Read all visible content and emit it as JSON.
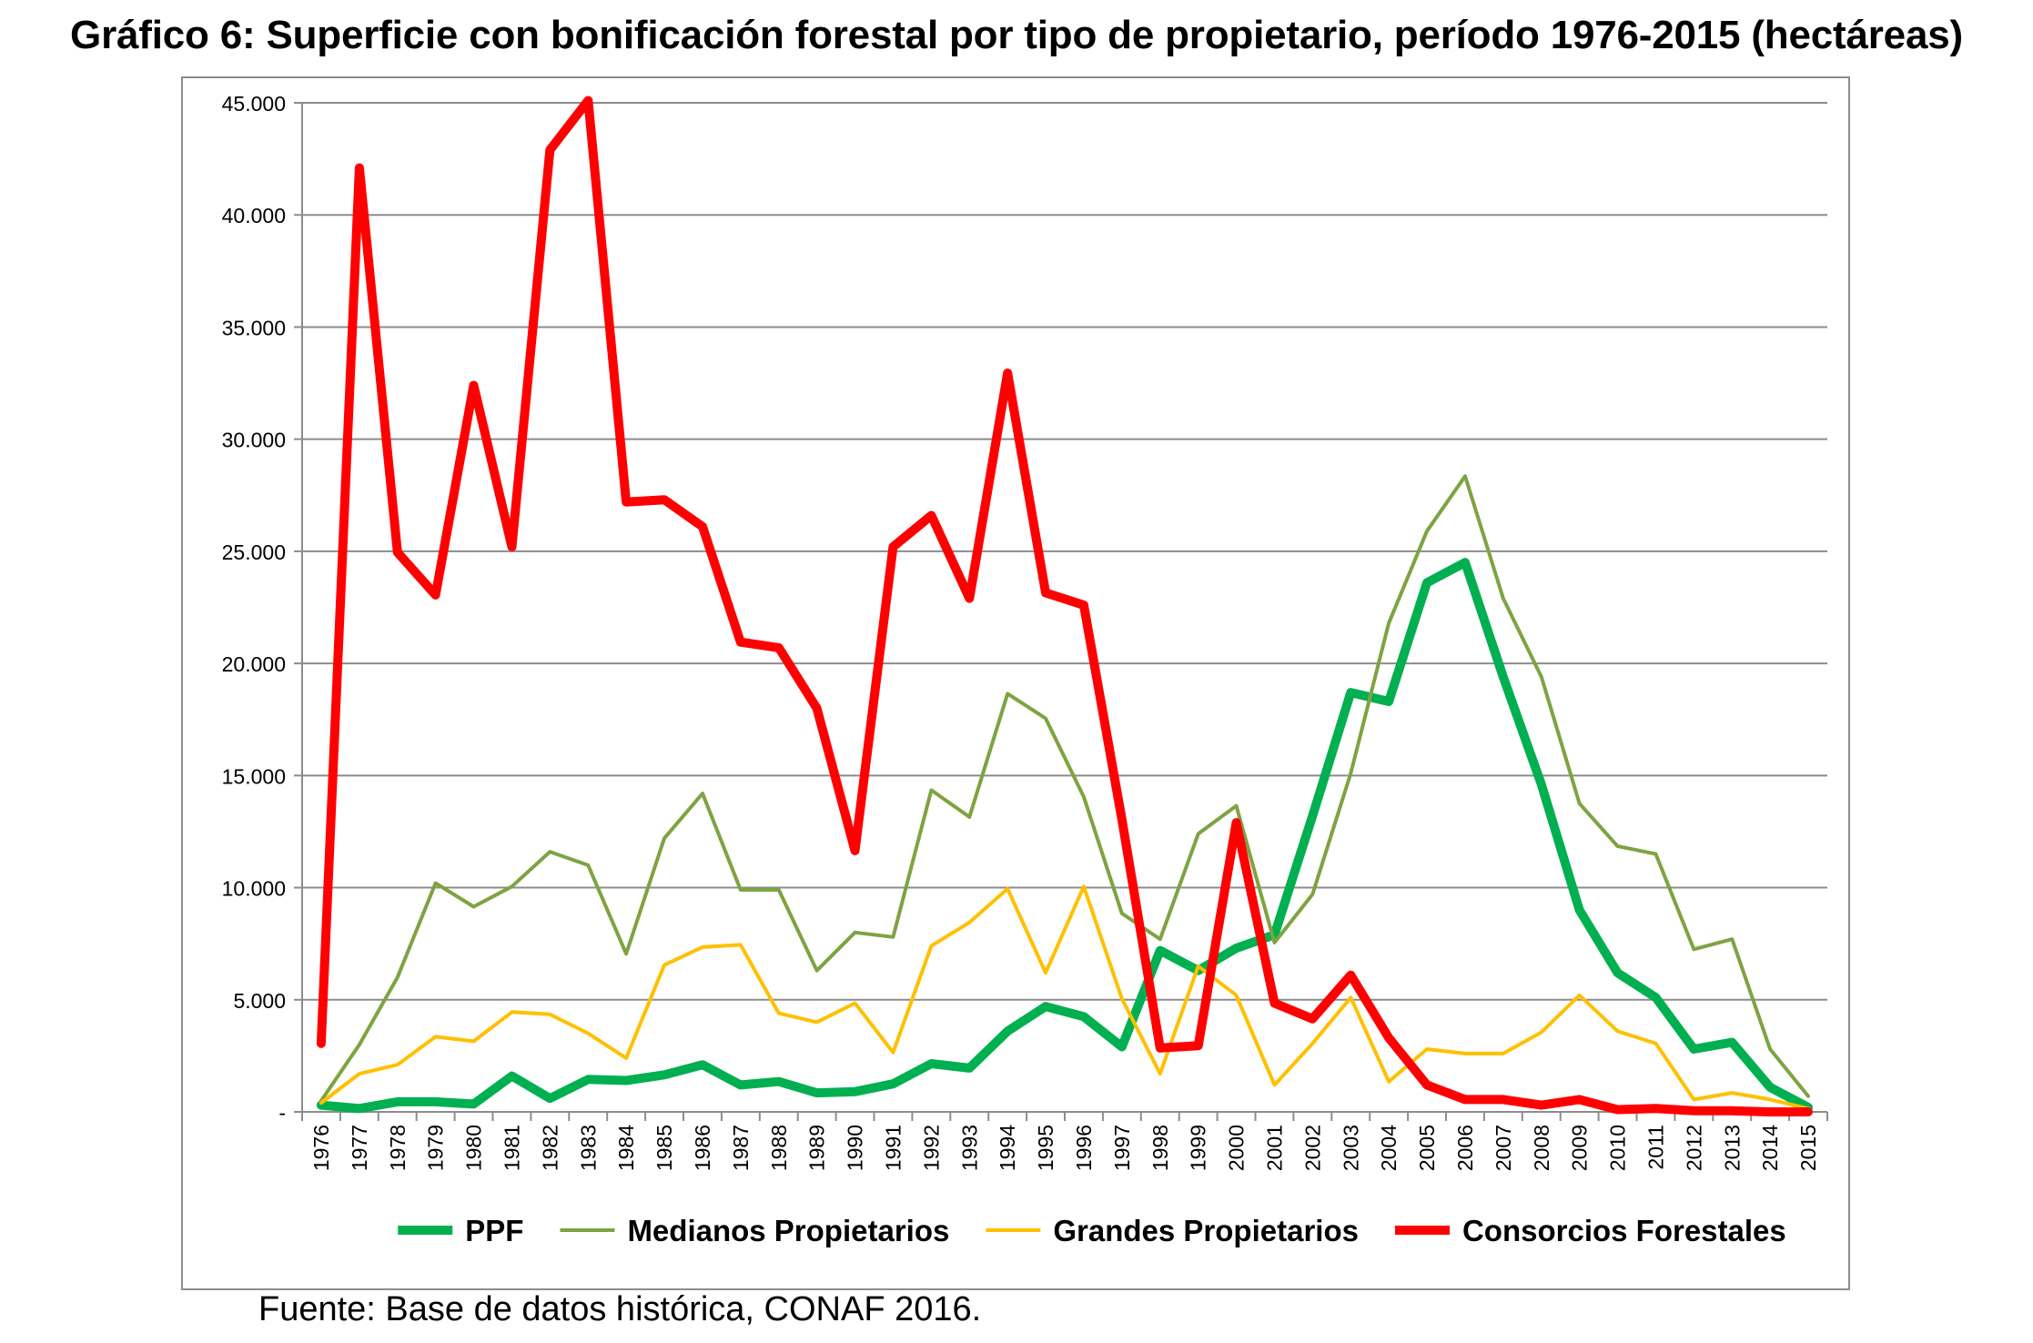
{
  "title": "Gráfico 6: Superficie con bonificación forestal por tipo de propietario, período 1976-2015 (hectáreas)",
  "source": "Fuente: Base de datos histórica, CONAF 2016.",
  "chart_data": {
    "type": "line",
    "title": "Gráfico 6: Superficie con bonificación forestal por tipo de propietario, período 1976-2015 (hectáreas)",
    "xlabel": "",
    "ylabel": "",
    "ylim": [
      0,
      45000
    ],
    "y_ticks": [
      {
        "value": 0,
        "label": "-"
      },
      {
        "value": 5000,
        "label": "5.000"
      },
      {
        "value": 10000,
        "label": "10.000"
      },
      {
        "value": 15000,
        "label": "15.000"
      },
      {
        "value": 20000,
        "label": "20.000"
      },
      {
        "value": 25000,
        "label": "25.000"
      },
      {
        "value": 30000,
        "label": "30.000"
      },
      {
        "value": 35000,
        "label": "35.000"
      },
      {
        "value": 40000,
        "label": "40.000"
      },
      {
        "value": 45000,
        "label": "45.000"
      }
    ],
    "grid": true,
    "legend_position": "bottom",
    "categories": [
      "1976",
      "1977",
      "1978",
      "1979",
      "1980",
      "1981",
      "1982",
      "1983",
      "1984",
      "1985",
      "1986",
      "1987",
      "1988",
      "1989",
      "1990",
      "1991",
      "1992",
      "1993",
      "1994",
      "1995",
      "1996",
      "1997",
      "1998",
      "1999",
      "2000",
      "2001",
      "2002",
      "2003",
      "2004",
      "2005",
      "2006",
      "2007",
      "2008",
      "2009",
      "2010",
      "2011",
      "2012",
      "2013",
      "2014",
      "2015"
    ],
    "series": [
      {
        "name": "PPF",
        "color": "#00b050",
        "width": "thick",
        "values": [
          300,
          150,
          450,
          450,
          350,
          1600,
          600,
          1450,
          1400,
          1650,
          2100,
          1200,
          1350,
          850,
          900,
          1250,
          2150,
          1950,
          3600,
          4700,
          4250,
          2900,
          7200,
          6300,
          7300,
          7900,
          13200,
          18700,
          18300,
          23600,
          24500,
          19400,
          14600,
          9000,
          6200,
          5100,
          2800,
          3100,
          1100,
          200
        ]
      },
      {
        "name": "Medianos Propietarios",
        "color": "#7ea341",
        "width": "thin",
        "values": [
          500,
          3000,
          6000,
          10200,
          9150,
          10050,
          11600,
          11000,
          7050,
          12200,
          14200,
          9900,
          9900,
          6300,
          8000,
          7800,
          14350,
          13150,
          18650,
          17550,
          14050,
          8850,
          7700,
          12400,
          13650,
          7550,
          9700,
          15100,
          21800,
          25900,
          28350,
          22900,
          19400,
          13750,
          11850,
          11500,
          7250,
          7700,
          2800,
          700
        ]
      },
      {
        "name": "Grandes Propietarios",
        "color": "#ffc000",
        "width": "thin",
        "values": [
          400,
          1700,
          2100,
          3350,
          3150,
          4450,
          4350,
          3500,
          2400,
          6550,
          7350,
          7450,
          4400,
          4000,
          4850,
          2650,
          7400,
          8450,
          9950,
          6200,
          10050,
          5050,
          1700,
          6500,
          5200,
          1200,
          3050,
          5100,
          1350,
          2800,
          2600,
          2600,
          3550,
          5200,
          3600,
          3050,
          550,
          850,
          550,
          150
        ]
      },
      {
        "name": "Consorcios Forestales",
        "color": "#ff0000",
        "width": "thick",
        "values": [
          3050,
          42100,
          24950,
          23050,
          32400,
          25200,
          42900,
          45100,
          27200,
          27300,
          26100,
          20950,
          20700,
          18000,
          11650,
          25200,
          26600,
          22900,
          32950,
          23150,
          22600,
          13050,
          2850,
          2950,
          12900,
          4850,
          4150,
          6100,
          3300,
          1200,
          550,
          550,
          300,
          550,
          100,
          150,
          50,
          50,
          0,
          0
        ]
      }
    ]
  }
}
